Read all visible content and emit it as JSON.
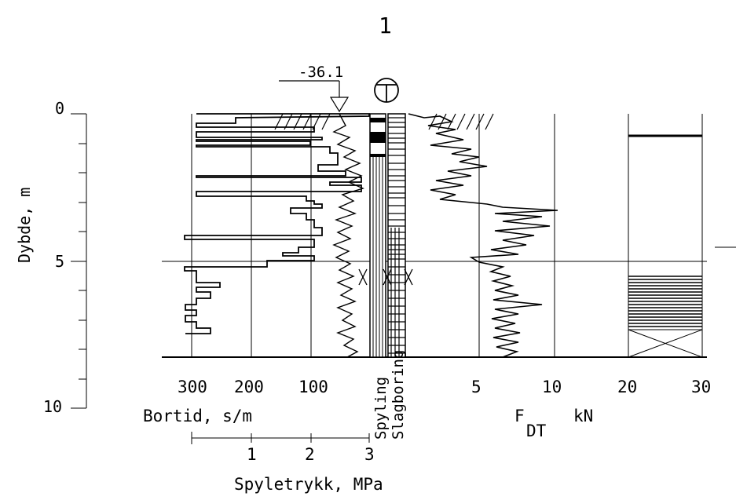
{
  "title": "1",
  "depth_marker": {
    "value": "-36.1"
  },
  "depth_axis": {
    "label": "Dybde, m",
    "ticks": [
      {
        "depth": 0,
        "label": "0"
      },
      {
        "depth": 5,
        "label": "5"
      },
      {
        "depth": 10,
        "label": "10"
      }
    ],
    "bottom_depth": 8.3,
    "reference_line_depth": 5.0
  },
  "bortid_axis": {
    "label": "Bortid, s/m",
    "ticks": [
      "300",
      "200",
      "100"
    ]
  },
  "spyletrykk_axis": {
    "label": "Spyletrykk, MPa",
    "ticks": [
      "1",
      "2",
      "3"
    ]
  },
  "column_labels": {
    "spyling": "Spyling",
    "slagboring": "Slagboring"
  },
  "force_axis": {
    "label_main": "F",
    "label_sub": "DT",
    "unit": "kN",
    "ticks": [
      "5",
      "10",
      "20",
      "30"
    ]
  }
}
